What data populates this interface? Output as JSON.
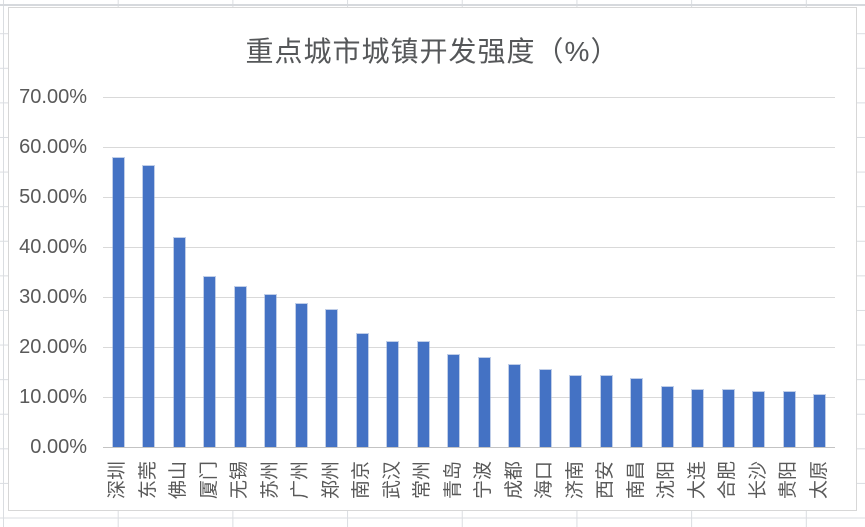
{
  "app": {
    "surface": "spreadsheet-with-embedded-chart"
  },
  "chart_data": {
    "type": "bar",
    "title": "重点城市城镇开发强度（%）",
    "categories": [
      "深圳",
      "东莞",
      "佛山",
      "厦门",
      "无锡",
      "苏州",
      "广州",
      "郑州",
      "南京",
      "武汉",
      "常州",
      "青岛",
      "宁波",
      "成都",
      "海口",
      "济南",
      "西安",
      "南昌",
      "沈阳",
      "大连",
      "合肥",
      "长沙",
      "贵阳",
      "太原"
    ],
    "values": [
      57.8,
      56.2,
      41.8,
      34.0,
      32.0,
      30.4,
      28.6,
      27.3,
      22.5,
      21.0,
      20.9,
      18.3,
      17.7,
      16.4,
      15.3,
      14.2,
      14.1,
      13.5,
      12.0,
      11.3,
      11.3,
      11.0,
      11.0,
      10.4
    ],
    "xlabel": "",
    "ylabel": "",
    "ylim": [
      0,
      70
    ],
    "ytick_step": 10,
    "ytick_labels": [
      "0.00%",
      "10.00%",
      "20.00%",
      "30.00%",
      "40.00%",
      "50.00%",
      "60.00%",
      "70.00%"
    ],
    "grid": true,
    "legend_position": "none",
    "bar_color": "#4472C4",
    "gridline_color": "#d9d9d9",
    "text_color": "#595959"
  }
}
